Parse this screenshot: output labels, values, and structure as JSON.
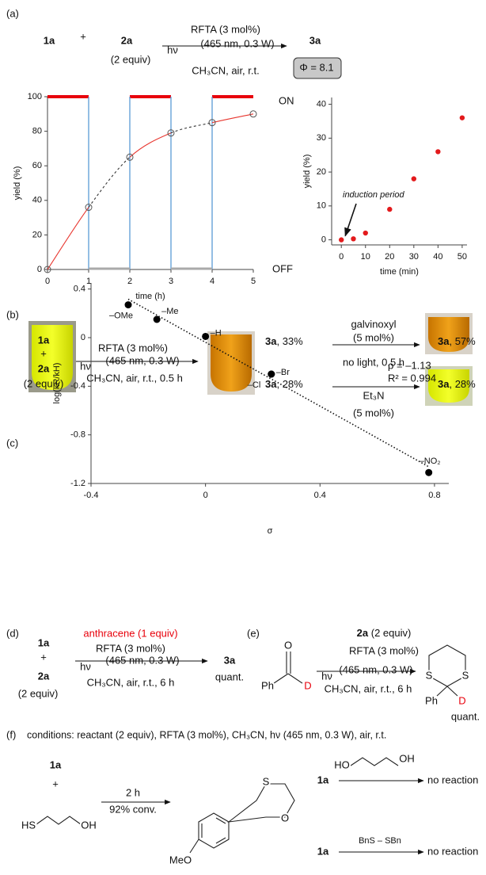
{
  "panel_a": {
    "label": "(a)",
    "reactant_1": "1a",
    "plus": "+",
    "reactant_2": "2a",
    "equiv": "(2 equiv)",
    "catalyst": "RFTA (3 mol%)",
    "hv": "hν",
    "light": "(465 nm, 0.3 W)",
    "conditions": "CH₃CN, air, r.t.",
    "product": "3a",
    "quantum_yield": "Φ = 8.1"
  },
  "chart_data": [
    {
      "type": "line",
      "x_label": "time (h)",
      "y_label": "yield (%)",
      "x": [
        0,
        1,
        2,
        3,
        4,
        5
      ],
      "series": [
        {
          "values": [
            0,
            36,
            65,
            79,
            85,
            90
          ],
          "color": "#e8362f"
        }
      ],
      "xlim": [
        0,
        5
      ],
      "ylim": [
        0,
        100
      ],
      "xticks": [
        0,
        1,
        2,
        3,
        4,
        5
      ],
      "yticks": [
        0,
        20,
        40,
        60,
        80,
        100
      ],
      "light_on": [
        [
          0,
          1
        ],
        [
          2,
          3
        ],
        [
          4,
          5
        ]
      ],
      "light_off": [
        [
          1,
          2
        ],
        [
          3,
          4
        ]
      ],
      "on_label": "ON",
      "off_label": "OFF",
      "on_color": "#e8000b",
      "off_color": "#aaaaaa",
      "switch_color": "#5b9bd5"
    },
    {
      "type": "scatter",
      "x_label": "time (min)",
      "y_label": "yield (%)",
      "x": [
        0,
        5,
        10,
        20,
        30,
        40,
        50
      ],
      "series": [
        {
          "values": [
            0,
            0.3,
            2,
            9,
            18,
            26,
            36
          ],
          "color": "#e31a1c"
        }
      ],
      "xlim": [
        -4,
        52
      ],
      "ylim": [
        -1.5,
        42
      ],
      "xticks": [
        0,
        10,
        20,
        30,
        40,
        50
      ],
      "yticks": [
        0,
        10,
        20,
        30,
        40
      ],
      "annotation": "induction period"
    },
    {
      "type": "scatter",
      "x_label": "σ",
      "y_label": "log(kR/kH)",
      "x": [
        -0.27,
        -0.17,
        0,
        0.23,
        0.23,
        0.78
      ],
      "series": [
        {
          "values": [
            0.27,
            0.15,
            0.01,
            -0.3,
            -0.3,
            -1.11
          ],
          "color": "#000000"
        }
      ],
      "point_labels": [
        "–OMe",
        "–Me",
        "–H",
        "–Cl",
        "–Br",
        "–NO₂"
      ],
      "xlim": [
        -0.4,
        0.85
      ],
      "ylim": [
        -1.2,
        0.45
      ],
      "xticks": [
        -0.4,
        0,
        0.4,
        0.8
      ],
      "yticks": [
        -1.2,
        -0.8,
        -0.4,
        0,
        0.4
      ],
      "fit_line": true,
      "rho": "ρ = –1.13",
      "r2": "R² = 0.994"
    }
  ],
  "panel_b": {
    "label": "(b)",
    "reactant_1": "1a",
    "plus": "+",
    "reactant_2": "2a",
    "equiv": "(2 equiv)",
    "catalyst": "RFTA (3 mol%)",
    "hv": "hν",
    "light": "(465 nm, 0.3 W)",
    "conditions": "CH₃CN, air, r.t., 0.5 h",
    "result_1": {
      "compound": "3a",
      "yield": ", 33%"
    },
    "result_2": {
      "compound": "3a",
      "yield": ", 28%"
    },
    "additive_top": "galvinoxyl",
    "additive_top_amount": "(5 mol%)",
    "middle_condition": "no light, 0.5 h",
    "additive_bottom": "Et₃N",
    "additive_bottom_amount": "(5 mol%)",
    "result_top": {
      "compound": "3a",
      "yield": ", 57%"
    },
    "result_bottom": {
      "compound": "3a",
      "yield": ", 28%"
    }
  },
  "panel_d": {
    "label": "(d)",
    "reactant_1": "1a",
    "plus": "+",
    "reactant_2": "2a",
    "equiv": "(2 equiv)",
    "additive": "anthracene (1 equiv)",
    "catalyst": "RFTA (3 mol%)",
    "hv": "hν",
    "light": "(465 nm, 0.3 W)",
    "conditions": "CH₃CN, air, r.t., 6 h",
    "product": "3a",
    "yield": "quant."
  },
  "panel_e": {
    "label": "(e)",
    "substrate_atoms": {
      "O": "O",
      "Ph": "Ph",
      "D": "D"
    },
    "reagent": {
      "compound": "2a",
      "amount": " (2 equiv)"
    },
    "catalyst": "RFTA (3 mol%)",
    "hv": "hν",
    "light": "(465 nm, 0.3 W)",
    "conditions": "CH₃CN, air, r.t., 6 h",
    "product_atoms": {
      "S1": "S",
      "S2": "S",
      "Ph": "Ph",
      "D": "D"
    },
    "yield": "quant."
  },
  "panel_f": {
    "label": "(f)",
    "conditions": "conditions: reactant (2 equiv), RFTA (3 mol%), CH₃CN, hν (465 nm, 0.3 W), air, r.t.",
    "reactant_1": "1a",
    "plus": "+",
    "thiol_atoms": {
      "HS": "HS",
      "OH": "OH"
    },
    "time": "2 h",
    "conversion": "92% conv.",
    "product_atoms": {
      "S": "S",
      "O": "O",
      "MeO": "MeO"
    },
    "control_1": {
      "reactant": "1a",
      "atom_left": "HO",
      "atom_right": "OH",
      "result": "no reaction"
    },
    "control_2": {
      "reactant": "1a",
      "reagent": "BnS – SBn",
      "result": "no reaction"
    }
  }
}
